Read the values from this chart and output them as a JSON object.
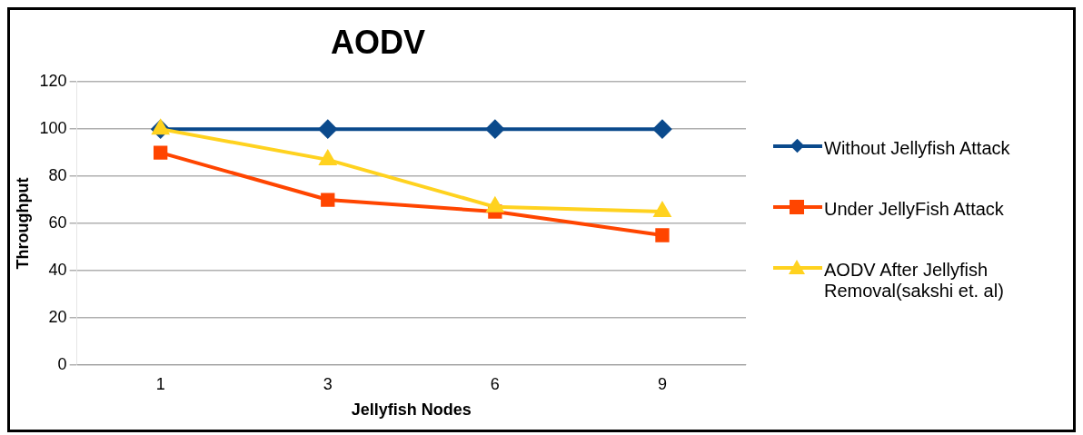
{
  "chart_data": {
    "type": "line",
    "title": "AODV",
    "xlabel": "Jellyfish Nodes",
    "ylabel": "Throughput",
    "categories": [
      "1",
      "3",
      "6",
      "9"
    ],
    "series": [
      {
        "name": "Without Jellyfish Attack",
        "color": "#0b4a8c",
        "marker": "diamond",
        "values": [
          100,
          100,
          100,
          100
        ]
      },
      {
        "name": "Under JellyFish Attack",
        "color": "#ff4500",
        "marker": "square",
        "values": [
          90,
          70,
          65,
          55
        ]
      },
      {
        "name": "AODV After Jellyfish Removal(sakshi et. al)",
        "color": "#ffd21f",
        "marker": "triangle",
        "values": [
          100,
          87,
          67,
          65
        ]
      }
    ],
    "ylim": [
      0,
      120
    ],
    "yticks": [
      0,
      20,
      40,
      60,
      80,
      100,
      120
    ],
    "grid": "y",
    "legend": "right"
  }
}
